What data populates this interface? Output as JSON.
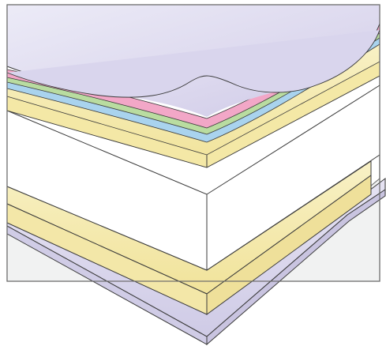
{
  "diagram": {
    "description_visible_text": "",
    "colors": {
      "background": "#ffffff",
      "outline": "#3a3a3a",
      "frame": "#6b6b6b",
      "top_membrane": "#d5d1ea",
      "top_membrane_light": "#ebe9f6",
      "pink_layer": "#f2a7c7",
      "green_layer": "#b9dca0",
      "blue_layer": "#a9d3ee",
      "yellow_layer": "#f6eeb8",
      "yellow_edge": "#f1e49c",
      "white_block": "#ffffff",
      "bottom_layer": "#f1f2f2",
      "lavender_layer": "#d9d6ec"
    },
    "layers_top_to_bottom": [
      "top-membrane",
      "pink-layer",
      "green-layer",
      "blue-layer",
      "yellow-layer-upper",
      "white-core-block",
      "yellow-layer-lower",
      "lavender-layer-bottom"
    ]
  }
}
